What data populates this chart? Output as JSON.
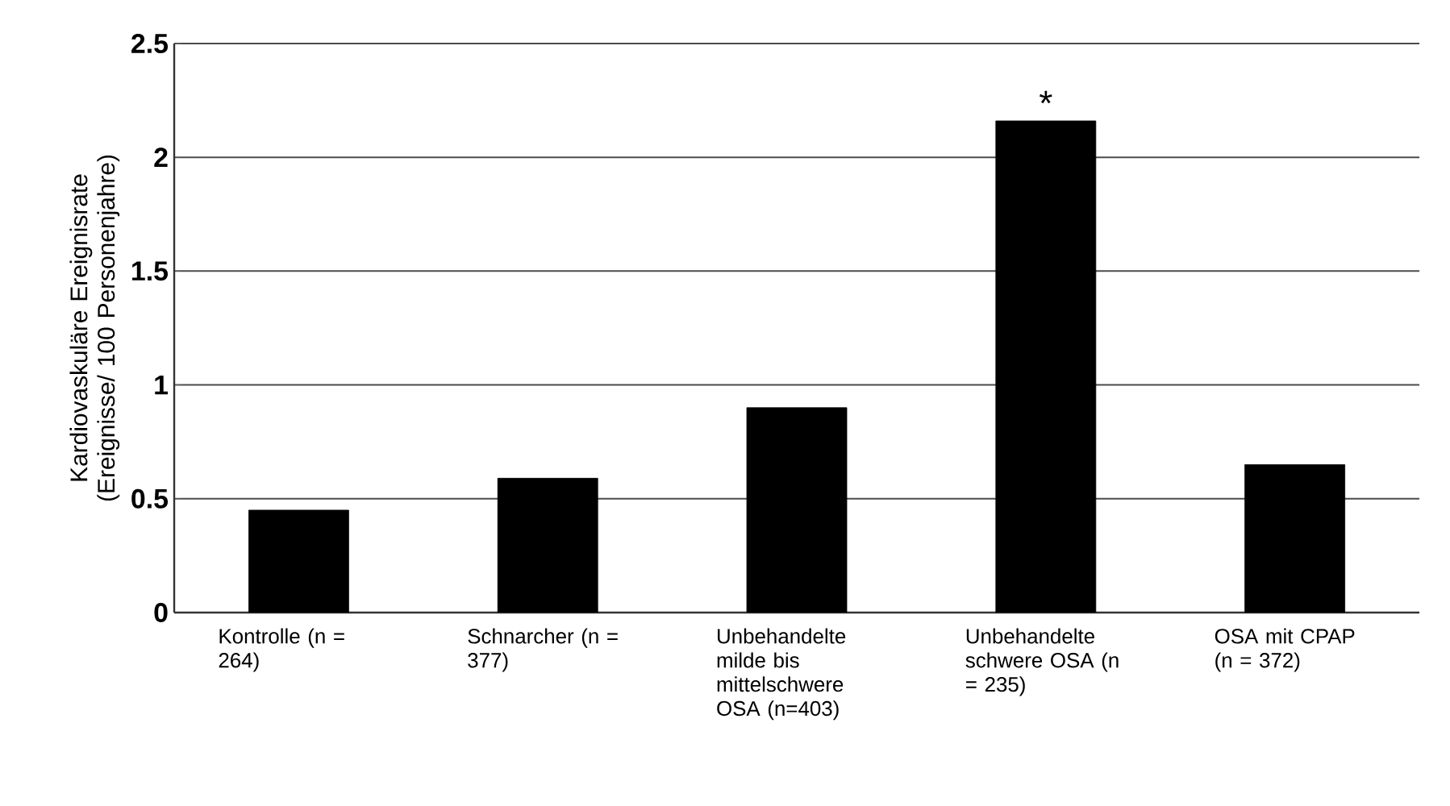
{
  "chart_data": {
    "type": "bar",
    "ylabel": "Kardiovaskuläre Ereignisrate (Ereignisse/ 100 Personenjahre)",
    "categories": [
      "Kontrolle (n = 264)",
      "Schnarcher (n = 377)",
      "Unbehandelte milde bis mittelschwere OSA (n=403)",
      "Unbehandelte schwere OSA (n = 235)",
      "OSA mit CPAP (n = 372)"
    ],
    "values": [
      0.45,
      0.59,
      0.9,
      2.16,
      0.65
    ],
    "color": "#000000",
    "ylim": [
      0,
      2.5
    ],
    "yticks": [
      0,
      0.5,
      1,
      1.5,
      2,
      2.5
    ],
    "grid": "y",
    "annotations": [
      {
        "text": "*",
        "x": "Unbehandelte schwere OSA (n = 235)",
        "y": 2.16
      }
    ]
  }
}
